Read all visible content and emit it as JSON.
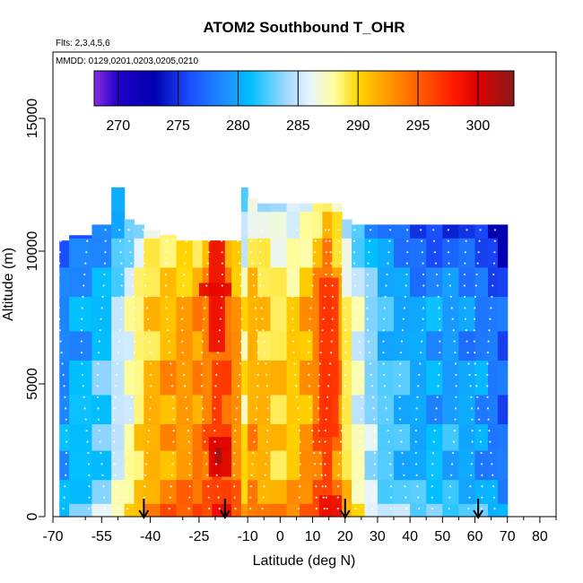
{
  "chart_data": {
    "type": "heatmap",
    "title": "ATOM2 Southbound T_OHR",
    "flights_label": "Flts: 2,3,4,5,6",
    "dates_label": "MMDD: 0129,0201,0203,0205,0210",
    "xlabel": "Latitude (deg N)",
    "ylabel": "Altitude (m)",
    "xlim": [
      -70,
      85
    ],
    "ylim": [
      0,
      17500
    ],
    "x_ticks": [
      -70,
      -55,
      -40,
      -25,
      -10,
      0,
      10,
      20,
      30,
      40,
      50,
      60,
      70,
      80
    ],
    "x_tick_labels": [
      "-70",
      "-55",
      "-40",
      "-25",
      "-10",
      "0",
      "10",
      "20",
      "30",
      "40",
      "50",
      "60",
      "70",
      "80"
    ],
    "x_minor_ticks": [
      -60,
      -50,
      -30,
      -20,
      -5,
      5,
      15,
      25,
      35,
      45,
      55,
      65,
      75,
      85
    ],
    "y_ticks": [
      0,
      5000,
      10000,
      15000
    ],
    "y_tick_labels": [
      "0",
      "5000",
      "10000",
      "15000"
    ],
    "colorbar": {
      "range": [
        268,
        303
      ],
      "ticks": [
        270,
        275,
        280,
        285,
        290,
        295,
        300
      ],
      "tick_labels": [
        "270",
        "275",
        "280",
        "285",
        "290",
        "295",
        "300"
      ],
      "stops": [
        [
          268,
          "#8a2be2"
        ],
        [
          270,
          "#2000c8"
        ],
        [
          273,
          "#0000b0"
        ],
        [
          276,
          "#1a4fff"
        ],
        [
          279,
          "#1e90ff"
        ],
        [
          281,
          "#00bfff"
        ],
        [
          284,
          "#a0d8ff"
        ],
        [
          286,
          "#e8f4ff"
        ],
        [
          288,
          "#ffffa0"
        ],
        [
          290,
          "#ffd700"
        ],
        [
          292,
          "#ffa500"
        ],
        [
          295,
          "#ff6000"
        ],
        [
          298,
          "#ff1a00"
        ],
        [
          300,
          "#dd0000"
        ],
        [
          303,
          "#8b1a1a"
        ]
      ]
    },
    "columns": [
      {
        "x0": -68,
        "x1": -65,
        "top": 10400,
        "T": 279
      },
      {
        "x0": -65,
        "x1": -58,
        "top": 10600,
        "T": 280.5
      },
      {
        "x0": -58,
        "x1": -52,
        "top": 11000,
        "T": 282
      },
      {
        "x0": -52,
        "x1": -48,
        "top": 12400,
        "T": 285
      },
      {
        "x0": -48,
        "x1": -45,
        "top": 11200,
        "T": 287
      },
      {
        "x0": -45,
        "x1": -42,
        "top": 11000,
        "T": 289
      },
      {
        "x0": -42,
        "x1": -37,
        "top": 10800,
        "T": 291
      },
      {
        "x0": -37,
        "x1": -32,
        "top": 10600,
        "T": 292
      },
      {
        "x0": -32,
        "x1": -27,
        "top": 10400,
        "T": 292.5
      },
      {
        "x0": -27,
        "x1": -24,
        "top": 10400,
        "T": 293
      },
      {
        "x0": -24,
        "x1": -21,
        "top": 10400,
        "T": 294
      },
      {
        "x0": -21,
        "x1": -18,
        "top": 10400,
        "T": 296
      },
      {
        "x0": -18,
        "x1": -15,
        "top": 10400,
        "T": 295
      },
      {
        "x0": -15,
        "x1": -12,
        "top": 10400,
        "T": 293
      },
      {
        "x0": -12,
        "x1": -10,
        "top": 12400,
        "T": 289
      },
      {
        "x0": -10,
        "x1": -7,
        "top": 12000,
        "T": 292
      },
      {
        "x0": -7,
        "x1": -3,
        "top": 11800,
        "T": 291
      },
      {
        "x0": -3,
        "x1": 2,
        "top": 11800,
        "T": 290
      },
      {
        "x0": 2,
        "x1": 6,
        "top": 11800,
        "T": 290.5
      },
      {
        "x0": 6,
        "x1": 10,
        "top": 11800,
        "T": 292
      },
      {
        "x0": 10,
        "x1": 13,
        "top": 11800,
        "T": 294
      },
      {
        "x0": 13,
        "x1": 16,
        "top": 11800,
        "T": 296
      },
      {
        "x0": 16,
        "x1": 19,
        "top": 11800,
        "T": 293
      },
      {
        "x0": 19,
        "x1": 22,
        "top": 11200,
        "T": 289
      },
      {
        "x0": 22,
        "x1": 26,
        "top": 11000,
        "T": 286.5
      },
      {
        "x0": 26,
        "x1": 30,
        "top": 11000,
        "T": 284
      },
      {
        "x0": 30,
        "x1": 35,
        "top": 11000,
        "T": 282
      },
      {
        "x0": 35,
        "x1": 40,
        "top": 11000,
        "T": 281
      },
      {
        "x0": 40,
        "x1": 45,
        "top": 11000,
        "T": 280
      },
      {
        "x0": 45,
        "x1": 50,
        "top": 11000,
        "T": 280
      },
      {
        "x0": 50,
        "x1": 55,
        "top": 11000,
        "T": 280
      },
      {
        "x0": 55,
        "x1": 60,
        "top": 11000,
        "T": 279.5
      },
      {
        "x0": 60,
        "x1": 64,
        "top": 11000,
        "T": 279
      },
      {
        "x0": 64,
        "x1": 67,
        "top": 11000,
        "T": 278
      },
      {
        "x0": 67,
        "x1": 70,
        "top": 11000,
        "T": 277
      }
    ],
    "bands": [
      {
        "y0": 0,
        "y1": 500,
        "dT": 3
      },
      {
        "y0": 500,
        "y1": 1400,
        "dT": 1.5
      },
      {
        "y0": 1400,
        "y1": 2500,
        "dT": 0
      },
      {
        "y0": 2500,
        "y1": 3500,
        "dT": 1
      },
      {
        "y0": 3500,
        "y1": 4600,
        "dT": -0.5
      },
      {
        "y0": 4600,
        "y1": 5900,
        "dT": 0.5
      },
      {
        "y0": 5900,
        "y1": 7000,
        "dT": -1
      },
      {
        "y0": 7000,
        "y1": 8300,
        "dT": 0
      },
      {
        "y0": 8300,
        "y1": 9400,
        "dT": -1.5
      },
      {
        "y0": 9400,
        "y1": 10500,
        "dT": -3
      },
      {
        "y0": 10500,
        "y1": 11500,
        "dT": -4.5
      },
      {
        "y0": 11500,
        "y1": 12600,
        "dT": -6
      }
    ],
    "hotspots": [
      {
        "x0": -22,
        "x1": -17,
        "y0": 6200,
        "y1": 10400,
        "T": 299
      },
      {
        "x0": -22,
        "x1": -15,
        "y0": 1500,
        "y1": 3000,
        "T": 300
      },
      {
        "x0": -20,
        "x1": -18,
        "y0": 2000,
        "y1": 2600,
        "T": 302
      },
      {
        "x0": 12,
        "x1": 18,
        "y0": 3000,
        "y1": 9000,
        "T": 297
      },
      {
        "x0": 12,
        "x1": 19,
        "y0": 0,
        "y1": 800,
        "T": 299
      },
      {
        "x0": -25,
        "x1": -15,
        "y0": 8300,
        "y1": 8800,
        "T": 299.5
      }
    ],
    "track_x": [
      -67,
      -60,
      -55,
      -50,
      -46,
      -41,
      -34,
      -29,
      -23,
      -19,
      -13,
      -8,
      -5,
      5,
      10,
      13,
      15,
      19,
      24,
      28,
      33,
      38,
      43,
      48,
      53,
      58,
      61,
      65
    ],
    "arrows_x": [
      -42,
      -17,
      20,
      61
    ]
  }
}
